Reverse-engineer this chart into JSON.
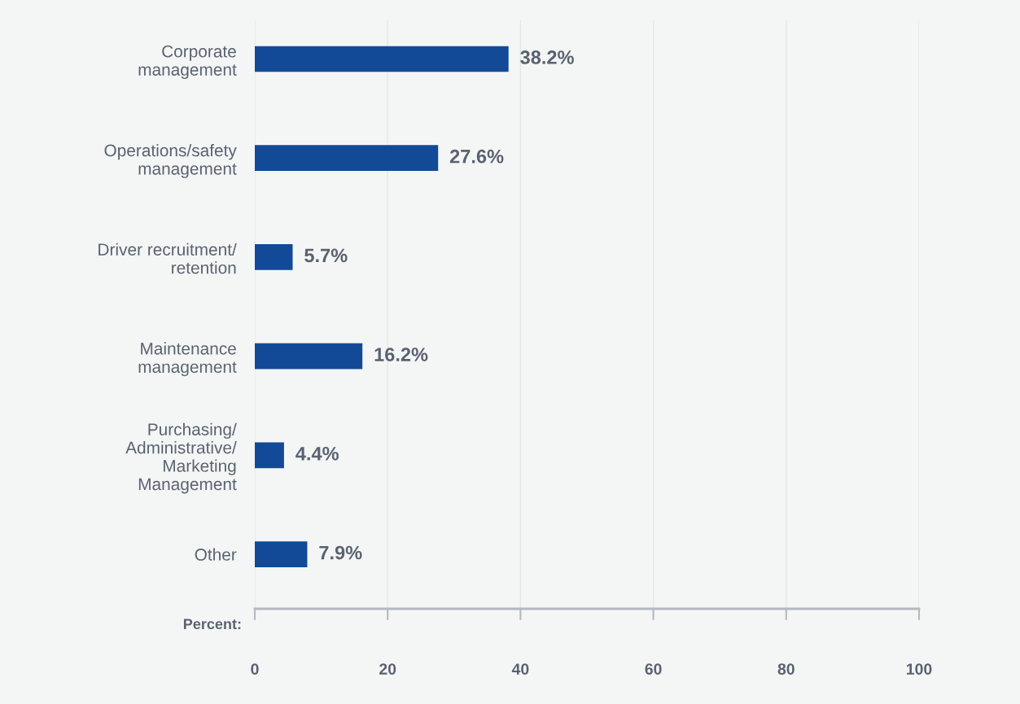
{
  "chart_data": {
    "type": "bar",
    "orientation": "horizontal",
    "xlabel": "Percent:",
    "categories": [
      "Corporate\nmanagement",
      "Operations/safety\nmanagement",
      "Driver recruitment/\nretention",
      "Maintenance\nmanagement",
      "Purchasing/\nAdministrative/\nMarketing\nManagement",
      "Other"
    ],
    "values": [
      38.2,
      27.6,
      5.7,
      16.2,
      4.4,
      7.9
    ],
    "color": "#124a97",
    "value_labels": [
      "38.2%",
      "27.6%",
      "5.7%",
      "16.2%",
      "4.4%",
      "7.9%"
    ],
    "xlim": [
      0,
      100
    ],
    "xticks": [
      0,
      20,
      40,
      60,
      80,
      100
    ],
    "grid": "x"
  }
}
